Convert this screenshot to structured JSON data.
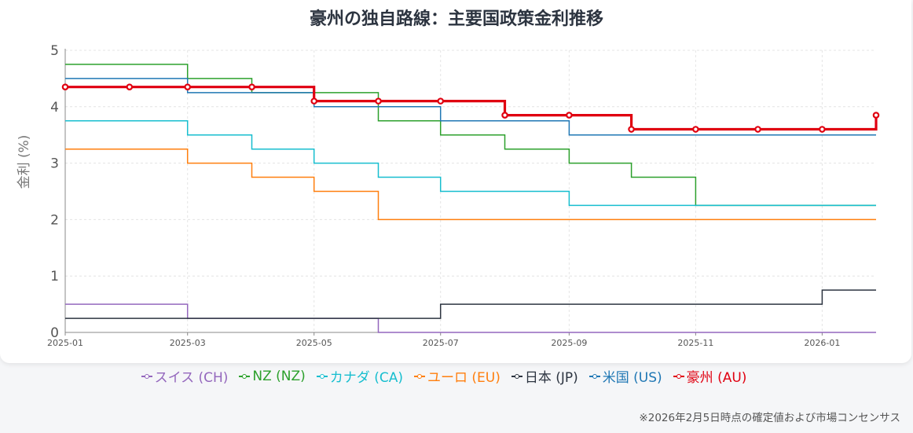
{
  "chart_data": {
    "type": "line",
    "step": true,
    "title": "豪州の独自路線：主要国政策金利推移",
    "ylabel": "金利 (%)",
    "xlabel": "",
    "ylim": [
      0,
      5
    ],
    "yticks": [
      "0",
      "1",
      "2",
      "3",
      "4",
      "5"
    ],
    "xlim": [
      "2025-01-01",
      "2026-01-27"
    ],
    "xticks": [
      "2025-01",
      "2025-03",
      "2025-05",
      "2025-07",
      "2025-09",
      "2025-11",
      "2026-01"
    ],
    "grid": true,
    "legend_position": "bottom",
    "series": [
      {
        "name": "スイス (CH)",
        "color": "#9467bd",
        "markers": false,
        "points": [
          [
            "2025-01-01",
            0.5
          ],
          [
            "2025-03-01",
            0.25
          ],
          [
            "2025-06-01",
            0
          ],
          [
            "2026-01-27",
            0
          ]
        ]
      },
      {
        "name": "NZ (NZ)",
        "color": "#2ca02c",
        "markers": false,
        "points": [
          [
            "2025-01-01",
            4.75
          ],
          [
            "2025-03-01",
            4.5
          ],
          [
            "2025-04-01",
            4.25
          ],
          [
            "2025-06-01",
            3.75
          ],
          [
            "2025-07-01",
            3.5
          ],
          [
            "2025-08-01",
            3.25
          ],
          [
            "2025-09-01",
            3.0
          ],
          [
            "2025-10-01",
            2.75
          ],
          [
            "2025-11-01",
            2.25
          ],
          [
            "2026-01-27",
            2.25
          ]
        ]
      },
      {
        "name": "カナダ (CA)",
        "color": "#17becf",
        "markers": false,
        "points": [
          [
            "2025-01-01",
            3.75
          ],
          [
            "2025-03-01",
            3.5
          ],
          [
            "2025-04-01",
            3.25
          ],
          [
            "2025-05-01",
            3.0
          ],
          [
            "2025-06-01",
            2.75
          ],
          [
            "2025-07-01",
            2.5
          ],
          [
            "2025-09-01",
            2.25
          ],
          [
            "2026-01-27",
            2.25
          ]
        ]
      },
      {
        "name": "ユーロ (EU)",
        "color": "#ff7f0e",
        "markers": false,
        "points": [
          [
            "2025-01-01",
            3.25
          ],
          [
            "2025-03-01",
            3.0
          ],
          [
            "2025-04-01",
            2.75
          ],
          [
            "2025-05-01",
            2.5
          ],
          [
            "2025-06-01",
            2.0
          ],
          [
            "2026-01-27",
            2.0
          ]
        ]
      },
      {
        "name": "日本 (JP)",
        "color": "#2c3440",
        "markers": false,
        "points": [
          [
            "2025-01-01",
            0.25
          ],
          [
            "2025-07-01",
            0.5
          ],
          [
            "2026-01-01",
            0.75
          ],
          [
            "2026-01-27",
            0.75
          ]
        ]
      },
      {
        "name": "米国 (US)",
        "color": "#1f77b4",
        "markers": false,
        "points": [
          [
            "2025-01-01",
            4.5
          ],
          [
            "2025-03-01",
            4.25
          ],
          [
            "2025-05-01",
            4.0
          ],
          [
            "2025-07-01",
            3.75
          ],
          [
            "2025-09-01",
            3.5
          ],
          [
            "2026-01-27",
            3.5
          ]
        ]
      },
      {
        "name": "豪州 (AU)",
        "color": "#e00010",
        "markers": true,
        "points": [
          [
            "2025-01-01",
            4.35
          ],
          [
            "2025-02-01",
            4.35
          ],
          [
            "2025-03-01",
            4.35
          ],
          [
            "2025-04-01",
            4.35
          ],
          [
            "2025-05-01",
            4.1
          ],
          [
            "2025-06-01",
            4.1
          ],
          [
            "2025-07-01",
            4.1
          ],
          [
            "2025-08-01",
            3.85
          ],
          [
            "2025-09-01",
            3.85
          ],
          [
            "2025-10-01",
            3.6
          ],
          [
            "2025-11-01",
            3.6
          ],
          [
            "2025-12-01",
            3.6
          ],
          [
            "2026-01-01",
            3.6
          ],
          [
            "2026-01-27",
            3.85
          ]
        ]
      }
    ]
  },
  "footnote": "※2026年2月5日時点の確定値および市場コンセンサス"
}
